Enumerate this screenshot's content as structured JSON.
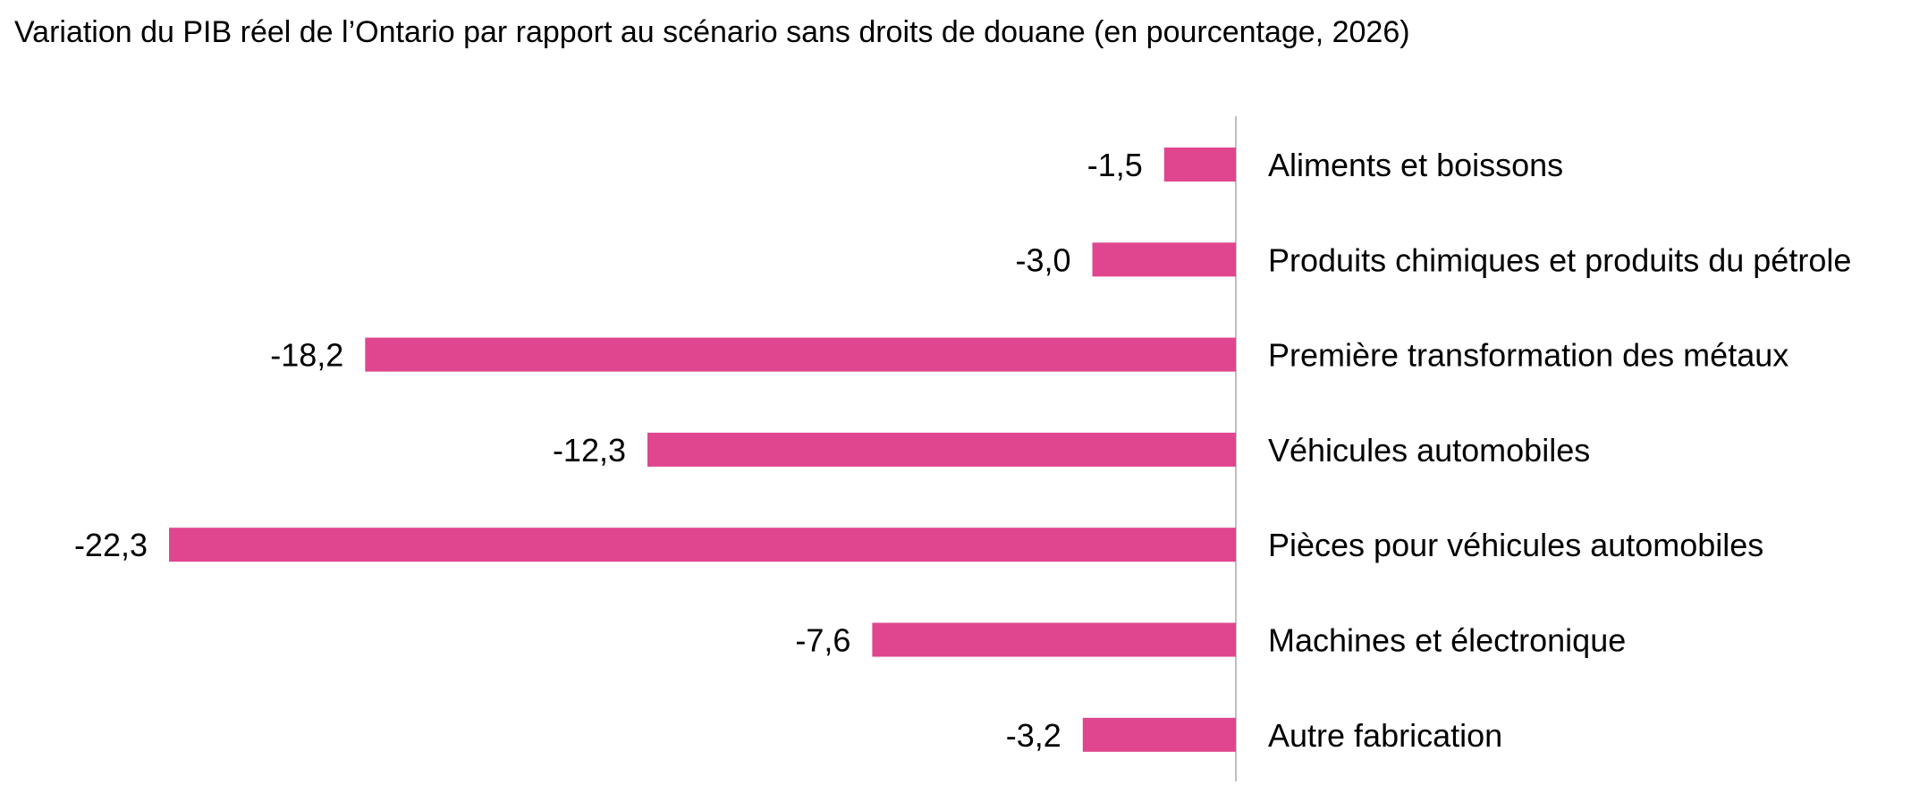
{
  "chart_data": {
    "type": "bar",
    "orientation": "horizontal",
    "title": "Variation du PIB réel de l’Ontario par rapport au scénario sans droits de douane (en pourcentage, 2026)",
    "categories": [
      "Aliments et boissons",
      "Produits chimiques et produits du pétrole",
      "Première transformation des métaux",
      "Véhicules automobiles",
      "Pièces pour véhicules automobiles",
      "Machines et électronique",
      "Autre fabrication"
    ],
    "values": [
      -1.5,
      -3.0,
      -18.2,
      -12.3,
      -22.3,
      -7.6,
      -3.2
    ],
    "data_labels": [
      "-1,5",
      "-3,0",
      "-18,2",
      "-12,3",
      "-22,3",
      "-7,6",
      "-3,2"
    ],
    "xlim": [
      -22.3,
      0
    ],
    "bar_color": "#e0468f",
    "axis_color": "#bfbfbf",
    "grid": false,
    "legend": "none",
    "category_labels_position": "right-of-axis",
    "data_labels_position": "bar-end"
  }
}
